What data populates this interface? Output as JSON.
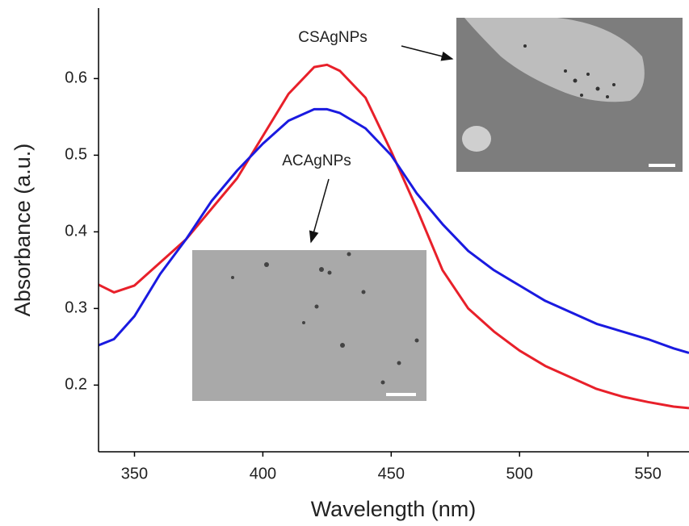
{
  "chart_data": {
    "type": "line",
    "x_label": "Wavelength (nm)",
    "y_label": "Absorbance (a.u.)",
    "annotations": [
      "CSAgNPs",
      "ACAgNPs"
    ],
    "x": [
      336,
      342,
      350,
      360,
      370,
      380,
      390,
      400,
      410,
      420,
      425,
      430,
      440,
      450,
      460,
      470,
      480,
      490,
      500,
      510,
      520,
      530,
      540,
      550,
      560,
      566
    ],
    "series": [
      {
        "color": "#e8202a",
        "values": [
          0.331,
          0.321,
          0.33,
          0.36,
          0.39,
          0.43,
          0.47,
          0.525,
          0.58,
          0.615,
          0.618,
          0.61,
          0.575,
          0.505,
          0.43,
          0.35,
          0.3,
          0.27,
          0.245,
          0.225,
          0.21,
          0.195,
          0.185,
          0.178,
          0.172,
          0.17
        ]
      },
      {
        "color": "#1a1ae0",
        "values": [
          0.252,
          0.26,
          0.29,
          0.345,
          0.39,
          0.44,
          0.48,
          0.515,
          0.545,
          0.56,
          0.56,
          0.555,
          0.535,
          0.5,
          0.45,
          0.41,
          0.375,
          0.35,
          0.33,
          0.31,
          0.295,
          0.28,
          0.27,
          0.26,
          0.248,
          0.242
        ]
      }
    ],
    "xlim": [
      336,
      566
    ],
    "ylim": [
      0.113,
      0.692
    ],
    "xticks": [
      350,
      400,
      450,
      500,
      550
    ],
    "yticks": [
      0.2,
      0.3,
      0.4,
      0.5,
      0.6
    ]
  }
}
